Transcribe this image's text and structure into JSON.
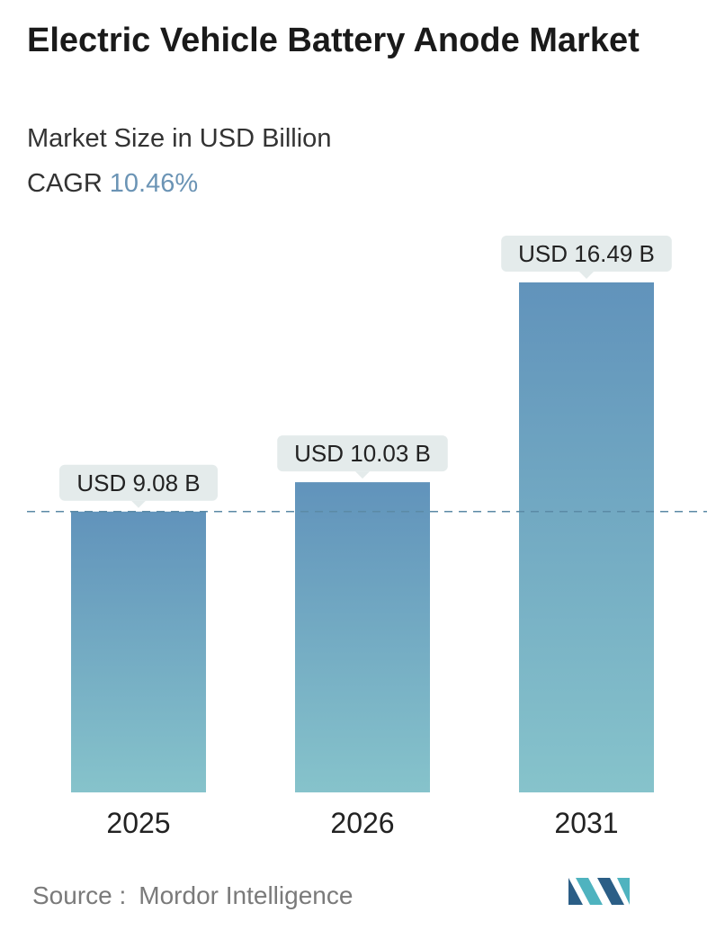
{
  "title": "Electric Vehicle Battery Anode Market",
  "subtitle": "Market Size in USD Billion",
  "cagr": {
    "label": "CAGR",
    "value": "10.46%"
  },
  "source": {
    "label": "Source :",
    "name": "Mordor Intelligence"
  },
  "colors": {
    "bar_top": "#6193bb",
    "bar_bottom": "#86c3cb",
    "callout_bg": "#e4ebeb",
    "dashed_line": "#5b8aa6",
    "cagr_value": "#6b94b5",
    "logo_dark": "#2b5e86",
    "logo_light": "#4fb3bf"
  },
  "chart_data": {
    "type": "bar",
    "categories": [
      "2025",
      "2026",
      "2031"
    ],
    "values": [
      9.08,
      10.03,
      16.49
    ],
    "data_labels": [
      "USD 9.08 B",
      "USD 10.03 B",
      "USD 16.49 B"
    ],
    "title": "Electric Vehicle Battery Anode Market",
    "subtitle": "Market Size in USD Billion",
    "xlabel": "",
    "ylabel": "",
    "ylim": [
      0,
      16.49
    ],
    "reference_line": 9.08,
    "grid": false,
    "legend": "none"
  }
}
